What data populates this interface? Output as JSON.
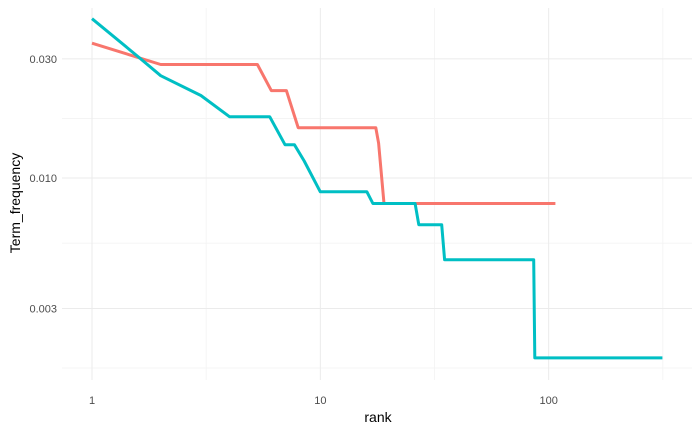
{
  "chart_data": {
    "type": "line",
    "title": "",
    "xlabel": "rank",
    "ylabel": "Term_frequency",
    "x_scale": "log10",
    "y_scale": "log10",
    "xlim": [
      1,
      320
    ],
    "ylim": [
      0.00155,
      0.048
    ],
    "grid": true,
    "legend": "none",
    "x_ticks": [
      {
        "value": 1,
        "label": "1"
      },
      {
        "value": 10,
        "label": "10"
      },
      {
        "value": 100,
        "label": "100"
      }
    ],
    "y_ticks": [
      {
        "value": 0.003,
        "label": "0.003"
      },
      {
        "value": 0.01,
        "label": "0.010"
      },
      {
        "value": 0.03,
        "label": "0.030"
      }
    ],
    "series": [
      {
        "color": "#F8766D",
        "x": [
          1,
          2,
          5.3,
          6.1,
          7.1,
          8,
          17.5,
          18,
          19,
          107
        ],
        "y": [
          0.0347,
          0.0285,
          0.0285,
          0.0224,
          0.0224,
          0.0159,
          0.0159,
          0.0138,
          0.0079,
          0.0079
        ]
      },
      {
        "color": "#00BFC4",
        "x": [
          1,
          1.6,
          2,
          3,
          4,
          6,
          7,
          7.7,
          8.5,
          10,
          16,
          17,
          26,
          27,
          34,
          35,
          86,
          87,
          315
        ],
        "y": [
          0.0435,
          0.0305,
          0.0257,
          0.0214,
          0.0176,
          0.0176,
          0.0136,
          0.0136,
          0.0117,
          0.0088,
          0.0088,
          0.0079,
          0.0079,
          0.0065,
          0.0065,
          0.0047,
          0.0047,
          0.0019,
          0.0019
        ]
      }
    ]
  }
}
